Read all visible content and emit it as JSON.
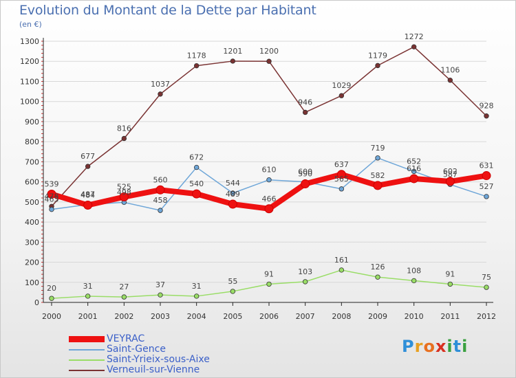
{
  "header": {
    "title": "Evolution du Montant de la Dette par Habitant",
    "subtitle": "(en €)"
  },
  "logo": {
    "text": "Proxiti"
  },
  "colors": {
    "VEYRAC": "#ee1111",
    "Saint-Gence": "#6ea6d8",
    "Saint-Yrieix-sous-Aixe": "#99dd66",
    "Verneuil-sur-Vienne": "#7a3333",
    "grid": "#d8d8d8",
    "axis": "#222222"
  },
  "chart_data": {
    "type": "line",
    "title": "Evolution du Montant de la Dette par Habitant",
    "subtitle": "(en €)",
    "xlabel": "",
    "ylabel": "",
    "x": [
      "2000",
      "2001",
      "2002",
      "2003",
      "2004",
      "2005",
      "2006",
      "2007",
      "2008",
      "2009",
      "2010",
      "2011",
      "2012"
    ],
    "ylim": [
      0,
      1300
    ],
    "yticks": [
      0,
      100,
      200,
      300,
      400,
      500,
      600,
      700,
      800,
      900,
      1000,
      1100,
      1200,
      1300
    ],
    "grid": "horizontal",
    "legend_position": "bottom-left",
    "series": [
      {
        "name": "Verneuil-sur-Vienne",
        "values": [
          478,
          677,
          816,
          1037,
          1178,
          1201,
          1200,
          946,
          1029,
          1179,
          1272,
          1106,
          928
        ]
      },
      {
        "name": "Saint-Gence",
        "values": [
          463,
          487,
          498,
          458,
          672,
          544,
          610,
          600,
          565,
          719,
          652,
          587,
          527
        ]
      },
      {
        "name": "Saint-Yrieix-sous-Aixe",
        "values": [
          20,
          31,
          27,
          37,
          31,
          55,
          91,
          103,
          161,
          126,
          108,
          91,
          75
        ]
      },
      {
        "name": "VEYRAC",
        "values": [
          539,
          484,
          525,
          560,
          540,
          489,
          466,
          590,
          637,
          582,
          616,
          602,
          631
        ]
      }
    ],
    "data_labels": {
      "Verneuil-sur-Vienne": [
        "478",
        "677",
        "816",
        "1037",
        "1178",
        "1201",
        "1200",
        "946",
        "1029",
        "1179",
        "1272",
        "1106",
        "928"
      ],
      "Saint-Gence": [
        "463",
        "487",
        "498",
        "458",
        "672",
        "544",
        "610",
        "600",
        "565",
        "719",
        "652",
        "587",
        "527"
      ],
      "Saint-Yrieix-sous-Aixe": [
        "20",
        "31",
        "27",
        "37",
        "31",
        "55",
        "91",
        "103",
        "161",
        "126",
        "108",
        "91",
        "75"
      ],
      "VEYRAC": [
        "539",
        "484",
        "525",
        "560",
        "540",
        "489",
        "466",
        "590",
        "637",
        "582",
        "616",
        "602",
        "631"
      ]
    }
  }
}
